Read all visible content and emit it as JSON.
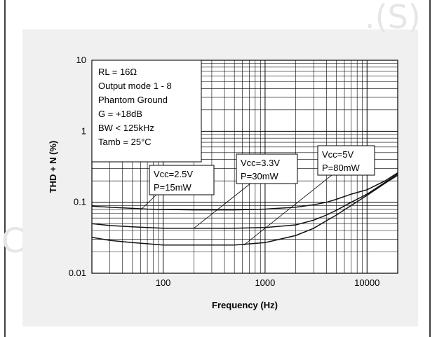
{
  "chart_data": {
    "type": "line",
    "title": "",
    "xlabel": "Frequency (Hz)",
    "ylabel": "THD + N (%)",
    "xscale": "log",
    "yscale": "log",
    "xlim": [
      20,
      20000
    ],
    "ylim": [
      0.01,
      10
    ],
    "x_ticks": [
      {
        "value": 100,
        "label": "100"
      },
      {
        "value": 1000,
        "label": "1000"
      },
      {
        "value": 10000,
        "label": "10000"
      }
    ],
    "y_ticks": [
      {
        "value": 10,
        "label": "10"
      },
      {
        "value": 1,
        "label": "1"
      },
      {
        "value": 0.1,
        "label": "0.1"
      },
      {
        "value": 0.01,
        "label": "0.01"
      }
    ],
    "grid": true,
    "conditions": [
      "RL = 16Ω",
      "Output mode 1 - 8",
      "Phantom Ground",
      "G = +18dB",
      "BW < 125kHz",
      "Tamb = 25°C"
    ],
    "series": [
      {
        "name": "Vcc=2.5V P=15mW",
        "x": [
          20,
          30,
          50,
          70,
          100,
          200,
          500,
          1000,
          2000,
          3000,
          4000,
          5000,
          7000,
          10000,
          15000,
          20000
        ],
        "y": [
          0.088,
          0.085,
          0.082,
          0.08,
          0.079,
          0.078,
          0.078,
          0.08,
          0.085,
          0.092,
          0.1,
          0.11,
          0.13,
          0.15,
          0.2,
          0.26
        ]
      },
      {
        "name": "Vcc=3.3V P=30mW",
        "x": [
          20,
          30,
          50,
          70,
          100,
          200,
          500,
          1000,
          2000,
          3000,
          4000,
          5000,
          7000,
          10000,
          15000,
          20000
        ],
        "y": [
          0.05,
          0.047,
          0.045,
          0.044,
          0.043,
          0.043,
          0.043,
          0.044,
          0.048,
          0.056,
          0.066,
          0.077,
          0.1,
          0.13,
          0.19,
          0.25
        ]
      },
      {
        "name": "Vcc=5V P=80mW",
        "x": [
          20,
          30,
          50,
          70,
          100,
          200,
          500,
          1000,
          2000,
          3000,
          4000,
          5000,
          7000,
          10000,
          15000,
          20000
        ],
        "y": [
          0.032,
          0.029,
          0.027,
          0.026,
          0.025,
          0.025,
          0.025,
          0.027,
          0.034,
          0.043,
          0.055,
          0.066,
          0.09,
          0.125,
          0.185,
          0.24
        ]
      }
    ],
    "callouts": [
      {
        "series": 0,
        "lines": [
          "Vcc=2.5V",
          "P=15mW"
        ],
        "anchor": [
          60,
          0.078
        ]
      },
      {
        "series": 1,
        "lines": [
          "Vcc=3.3V",
          "P=30mW"
        ],
        "anchor": [
          200,
          0.043
        ]
      },
      {
        "series": 2,
        "lines": [
          "Vcc=5V",
          "P=80mW"
        ],
        "anchor": [
          620,
          0.025
        ]
      }
    ]
  }
}
